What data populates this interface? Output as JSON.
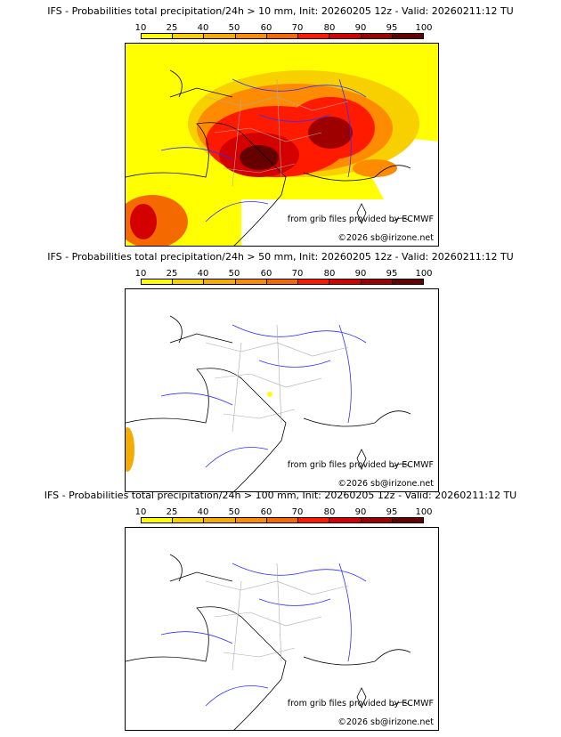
{
  "colorbar": {
    "ticks": [
      "10",
      "25",
      "40",
      "50",
      "60",
      "70",
      "80",
      "90",
      "95",
      "100"
    ],
    "colors": [
      "#ffff00",
      "#f8d000",
      "#f4ac00",
      "#ff8c00",
      "#f56a00",
      "#ff1a00",
      "#d40000",
      "#9e0000",
      "#660000"
    ]
  },
  "panels": [
    {
      "title": "IFS - Probabilities total precipitation/24h > 10 mm, Init: 20260205 12z - Valid: 20260211:12 TU",
      "credit": "from grib files provided by ECMWF",
      "copyright": "©2026 sb@irizone.net",
      "intensity": "high"
    },
    {
      "title": "IFS - Probabilities total precipitation/24h > 50 mm, Init: 20260205 12z - Valid: 20260211:12 TU",
      "credit": "from grib files provided by ECMWF",
      "copyright": "©2026 sb@irizone.net",
      "intensity": "low"
    },
    {
      "title": "IFS - Probabilities total precipitation/24h > 100 mm, Init: 20260205 12z - Valid: 20260211:12 TU",
      "credit": "from grib files provided by ECMWF",
      "copyright": "©2026 sb@irizone.net",
      "intensity": "none"
    }
  ]
}
